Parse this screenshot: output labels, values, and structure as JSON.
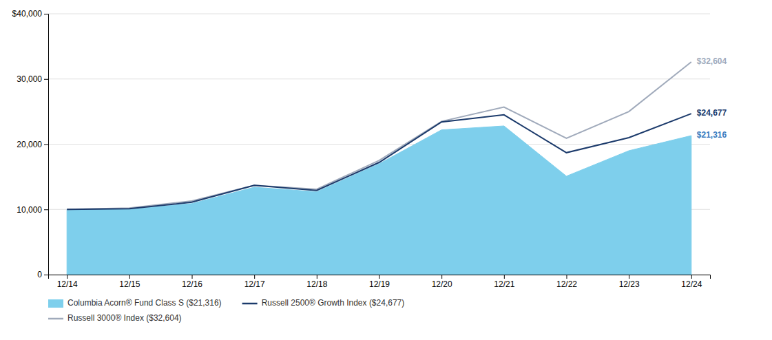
{
  "chart_data": {
    "type": "line",
    "categories": [
      "12/14",
      "12/15",
      "12/16",
      "12/17",
      "12/18",
      "12/19",
      "12/20",
      "12/21",
      "12/22",
      "12/23",
      "12/24"
    ],
    "series": [
      {
        "name": "Columbia Acorn® Fund Class S ($21,316)",
        "type": "area",
        "color": "#7ECFEC",
        "values": [
          10000,
          10000,
          10900,
          13400,
          12700,
          17000,
          22200,
          22800,
          15100,
          19000,
          21316
        ]
      },
      {
        "name": "Russell 2500® Growth Index ($24,677)",
        "type": "line",
        "color": "#1B3A6B",
        "values": [
          10000,
          10100,
          11100,
          13700,
          12900,
          17200,
          23400,
          24500,
          18700,
          21000,
          24677
        ]
      },
      {
        "name": "Russell 3000® Index ($32,604)",
        "type": "line",
        "color": "#A0AABB",
        "values": [
          10000,
          10200,
          11300,
          13700,
          13100,
          17500,
          23500,
          25700,
          20900,
          25000,
          32604
        ]
      }
    ],
    "ylim": [
      0,
      40000
    ],
    "yticks": [
      0,
      {
        "value": 10000,
        "label": "10,000"
      },
      {
        "value": 20000,
        "label": "20,000"
      },
      {
        "value": 30000,
        "label": "30,000"
      },
      {
        "value": 40000,
        "label": "$40,000"
      }
    ],
    "grid": true,
    "legend": "bottom",
    "annotations": [
      {
        "text": "$32,604",
        "x": "12/24",
        "y": 32604,
        "color": "#A0AABB"
      },
      {
        "text": "$24,677",
        "x": "12/24",
        "y": 24677,
        "color": "#1B3A6B"
      },
      {
        "text": "$21,316",
        "x": "12/24",
        "y": 21316,
        "color": "#3B7BBE"
      }
    ]
  }
}
